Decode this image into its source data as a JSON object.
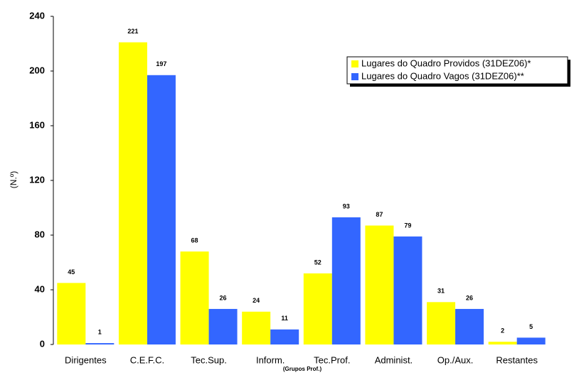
{
  "chart_data": {
    "type": "bar",
    "categories": [
      "Dirigentes",
      "C.E.F.C.",
      "Tec.Sup.",
      "Inform.",
      "Tec.Prof.",
      "Administ.",
      "Op./Aux.",
      "Restantes"
    ],
    "series": [
      {
        "name": "Lugares do Quadro Providos (31DEZ06)*",
        "color": "#ffff00",
        "values": [
          45,
          221,
          68,
          24,
          52,
          87,
          31,
          2
        ]
      },
      {
        "name": "Lugares do Quadro Vagos (31DEZ06)**",
        "color": "#3366ff",
        "values": [
          1,
          197,
          26,
          11,
          93,
          79,
          26,
          5
        ]
      }
    ],
    "y_label": "(N.º)",
    "x_label": "(Grupos Prof.)",
    "ylim": [
      0,
      240
    ],
    "yticks": [
      0,
      40,
      80,
      120,
      160,
      200,
      240
    ],
    "legend": "top-right"
  }
}
